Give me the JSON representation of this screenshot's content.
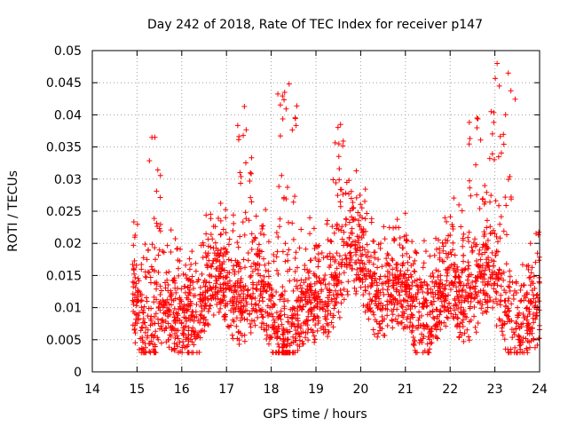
{
  "chart_data": {
    "type": "scatter",
    "title": "Day 242 of 2018, Rate Of TEC Index for receiver p147",
    "xlabel": "GPS time / hours",
    "ylabel": "ROTI / TECUs",
    "xlim": [
      14,
      24
    ],
    "ylim": [
      0,
      0.05
    ],
    "xticks": [
      14,
      15,
      16,
      17,
      18,
      19,
      20,
      21,
      22,
      23,
      24
    ],
    "yticks": [
      0,
      0.005,
      0.01,
      0.015,
      0.02,
      0.025,
      0.03,
      0.035,
      0.04,
      0.045,
      0.05
    ],
    "xtick_labels": [
      "14",
      "15",
      "16",
      "17",
      "18",
      "19",
      "20",
      "21",
      "22",
      "23",
      "24"
    ],
    "ytick_labels": [
      "0",
      "0.005",
      "0.01",
      "0.015",
      "0.02",
      "0.025",
      "0.03",
      "0.035",
      "0.04",
      "0.045",
      "0.05"
    ],
    "grid": true,
    "marker": "+",
    "color": "#ff0000",
    "data_range": {
      "x": [
        14.9,
        24.0
      ],
      "y": [
        0.003,
        0.048
      ]
    },
    "notable_points": [
      {
        "x": 15.4,
        "y": 0.0365
      },
      {
        "x": 17.4,
        "y": 0.0413
      },
      {
        "x": 18.3,
        "y": 0.0435
      },
      {
        "x": 18.4,
        "y": 0.0448
      },
      {
        "x": 19.55,
        "y": 0.0385
      },
      {
        "x": 22.6,
        "y": 0.0395
      },
      {
        "x": 23.05,
        "y": 0.048
      },
      {
        "x": 23.3,
        "y": 0.0465
      },
      {
        "x": 23.1,
        "y": 0.0445
      }
    ]
  }
}
